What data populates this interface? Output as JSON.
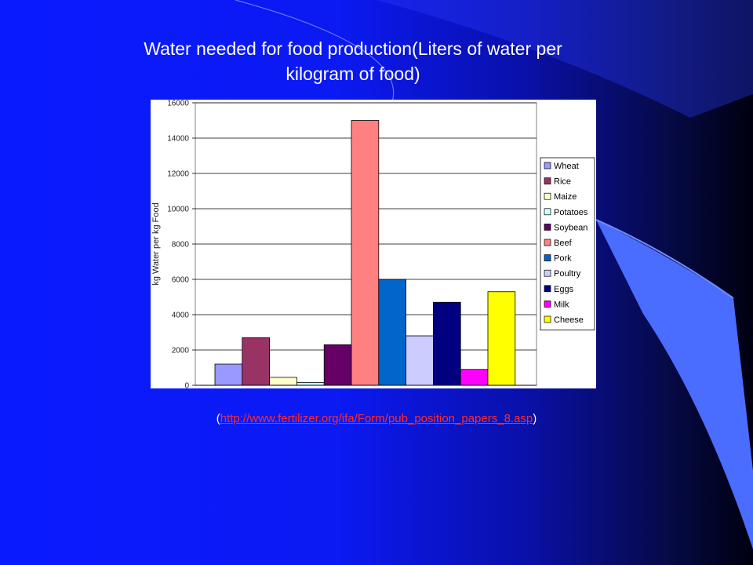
{
  "title": "Water needed for food production(Liters of water per kilogram of food)",
  "source": {
    "open": "(",
    "url": "http://www.fertilizer.org/ifa/Form/pub_position_papers_8.asp",
    "close": ")"
  },
  "colors": {
    "background": "#0b19f2",
    "deco_light": "#4a6cff"
  },
  "chart_data": {
    "type": "bar",
    "ylabel": "kg Water per kg Food",
    "ylim": [
      0,
      16000
    ],
    "yticks": [
      0,
      2000,
      4000,
      6000,
      8000,
      10000,
      12000,
      14000,
      16000
    ],
    "grid": true,
    "legend_position": "right",
    "series": [
      {
        "name": "Wheat",
        "value": 1200,
        "color": "#9999ff"
      },
      {
        "name": "Rice",
        "value": 2700,
        "color": "#993366"
      },
      {
        "name": "Maize",
        "value": 450,
        "color": "#ffffcc"
      },
      {
        "name": "Potatoes",
        "value": 160,
        "color": "#ccffff"
      },
      {
        "name": "Soybean",
        "value": 2300,
        "color": "#660066"
      },
      {
        "name": "Beef",
        "value": 15000,
        "color": "#ff8080"
      },
      {
        "name": "Pork",
        "value": 6000,
        "color": "#0066cc"
      },
      {
        "name": "Poultry",
        "value": 2800,
        "color": "#ccccff"
      },
      {
        "name": "Eggs",
        "value": 4700,
        "color": "#000080"
      },
      {
        "name": "Milk",
        "value": 900,
        "color": "#ff00ff"
      },
      {
        "name": "Cheese",
        "value": 5300,
        "color": "#ffff00"
      }
    ]
  }
}
